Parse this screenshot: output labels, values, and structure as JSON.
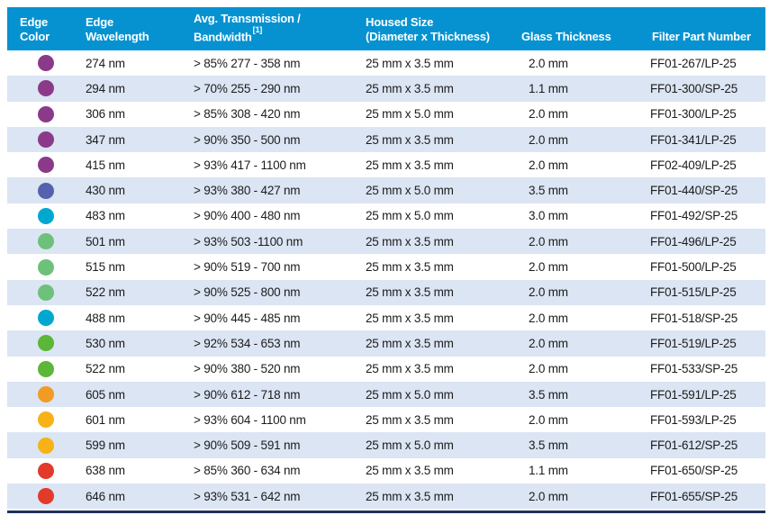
{
  "colors": {
    "header_bg": "#0692d0",
    "row_alt_bg": "#dbe5f3",
    "bottom_rule": "#232f60",
    "body_text": "#1c1c1c",
    "header_text": "#ffffff"
  },
  "table": {
    "columns": [
      {
        "line1": "Edge",
        "line2": "Color"
      },
      {
        "line1": "Edge",
        "line2": "Wavelength"
      },
      {
        "line1": "Avg. Transmission /",
        "line2": "Bandwidth",
        "superscript": "[1]"
      },
      {
        "line1": "Housed Size",
        "line2": "(Diameter x Thickness)"
      },
      {
        "line1": "",
        "line2": "Glass Thickness"
      },
      {
        "line1": "",
        "line2": "Filter Part Number"
      }
    ],
    "rows": [
      {
        "dot_color_name": "purple",
        "dot_color_hex": "#8b3a8a",
        "edge_wavelength": "274 nm",
        "transmission": "> 85% 277 - 358 nm",
        "housed_size": "25 mm x 3.5 mm",
        "glass_thickness": "2.0 mm",
        "part_number": "FF01-267/LP-25"
      },
      {
        "dot_color_name": "purple",
        "dot_color_hex": "#8b3a8a",
        "edge_wavelength": "294 nm",
        "transmission": "> 70% 255 - 290 nm",
        "housed_size": "25 mm x 3.5 mm",
        "glass_thickness": "1.1 mm",
        "part_number": "FF01-300/SP-25"
      },
      {
        "dot_color_name": "purple",
        "dot_color_hex": "#8b3a8a",
        "edge_wavelength": "306 nm",
        "transmission": "> 85% 308 - 420 nm",
        "housed_size": "25 mm x 5.0 mm",
        "glass_thickness": "2.0 mm",
        "part_number": "FF01-300/LP-25"
      },
      {
        "dot_color_name": "purple",
        "dot_color_hex": "#8b3a8a",
        "edge_wavelength": "347 nm",
        "transmission": "> 90% 350 - 500 nm",
        "housed_size": "25 mm x 3.5 mm",
        "glass_thickness": "2.0 mm",
        "part_number": "FF01-341/LP-25"
      },
      {
        "dot_color_name": "purple",
        "dot_color_hex": "#8b3a8a",
        "edge_wavelength": "415 nm",
        "transmission": "> 93% 417 - 1100 nm",
        "housed_size": "25 mm x 3.5 mm",
        "glass_thickness": "2.0 mm",
        "part_number": "FF02-409/LP-25"
      },
      {
        "dot_color_name": "blue-violet",
        "dot_color_hex": "#5562ae",
        "edge_wavelength": "430 nm",
        "transmission": "> 93% 380 - 427 nm",
        "housed_size": "25 mm x 5.0 mm",
        "glass_thickness": "3.5 mm",
        "part_number": "FF01-440/SP-25"
      },
      {
        "dot_color_name": "cyan",
        "dot_color_hex": "#00a8cf",
        "edge_wavelength": "483 nm",
        "transmission": "> 90% 400 - 480 nm",
        "housed_size": "25 mm x 5.0 mm",
        "glass_thickness": "3.0 mm",
        "part_number": "FF01-492/SP-25"
      },
      {
        "dot_color_name": "green",
        "dot_color_hex": "#6dc17b",
        "edge_wavelength": "501 nm",
        "transmission": "> 93% 503 -1100 nm",
        "housed_size": "25 mm x 3.5 mm",
        "glass_thickness": "2.0 mm",
        "part_number": "FF01-496/LP-25"
      },
      {
        "dot_color_name": "green",
        "dot_color_hex": "#6dc17b",
        "edge_wavelength": "515 nm",
        "transmission": "> 90% 519 - 700 nm",
        "housed_size": "25 mm x 3.5 mm",
        "glass_thickness": "2.0 mm",
        "part_number": "FF01-500/LP-25"
      },
      {
        "dot_color_name": "green",
        "dot_color_hex": "#6dc17b",
        "edge_wavelength": "522 nm",
        "transmission": "> 90% 525 - 800 nm",
        "housed_size": "25 mm x 3.5 mm",
        "glass_thickness": "2.0 mm",
        "part_number": "FF01-515/LP-25"
      },
      {
        "dot_color_name": "cyan",
        "dot_color_hex": "#00a8cf",
        "edge_wavelength": "488 nm",
        "transmission": "> 90% 445 - 485 nm",
        "housed_size": "25 mm x 3.5 mm",
        "glass_thickness": "2.0 mm",
        "part_number": "FF01-518/SP-25"
      },
      {
        "dot_color_name": "yellow-green",
        "dot_color_hex": "#5cb637",
        "edge_wavelength": "530 nm",
        "transmission": "> 92% 534 - 653 nm",
        "housed_size": "25 mm x 3.5 mm",
        "glass_thickness": "2.0 mm",
        "part_number": "FF01-519/LP-25"
      },
      {
        "dot_color_name": "yellow-green",
        "dot_color_hex": "#5cb637",
        "edge_wavelength": "522 nm",
        "transmission": "> 90% 380 - 520 nm",
        "housed_size": "25 mm x 3.5 mm",
        "glass_thickness": "2.0 mm",
        "part_number": "FF01-533/SP-25"
      },
      {
        "dot_color_name": "orange",
        "dot_color_hex": "#f09c24",
        "edge_wavelength": "605 nm",
        "transmission": "> 90% 612 - 718 nm",
        "housed_size": "25 mm x 5.0 mm",
        "glass_thickness": "3.5 mm",
        "part_number": "FF01-591/LP-25"
      },
      {
        "dot_color_name": "gold",
        "dot_color_hex": "#f7b217",
        "edge_wavelength": "601 nm",
        "transmission": "> 93% 604 - 1100 nm",
        "housed_size": "25 mm x 3.5 mm",
        "glass_thickness": "2.0 mm",
        "part_number": "FF01-593/LP-25"
      },
      {
        "dot_color_name": "gold",
        "dot_color_hex": "#f7b217",
        "edge_wavelength": "599 nm",
        "transmission": "> 90% 509 - 591 nm",
        "housed_size": "25 mm x 5.0 mm",
        "glass_thickness": "3.5 mm",
        "part_number": "FF01-612/SP-25"
      },
      {
        "dot_color_name": "red",
        "dot_color_hex": "#e23a2b",
        "edge_wavelength": "638 nm",
        "transmission": "> 85% 360 - 634 nm",
        "housed_size": "25 mm x 3.5 mm",
        "glass_thickness": "1.1 mm",
        "part_number": "FF01-650/SP-25"
      },
      {
        "dot_color_name": "red",
        "dot_color_hex": "#e23a2b",
        "edge_wavelength": "646 nm",
        "transmission": "> 93% 531 - 642 nm",
        "housed_size": "25 mm x 3.5 mm",
        "glass_thickness": "2.0 mm",
        "part_number": "FF01-655/SP-25"
      }
    ]
  }
}
